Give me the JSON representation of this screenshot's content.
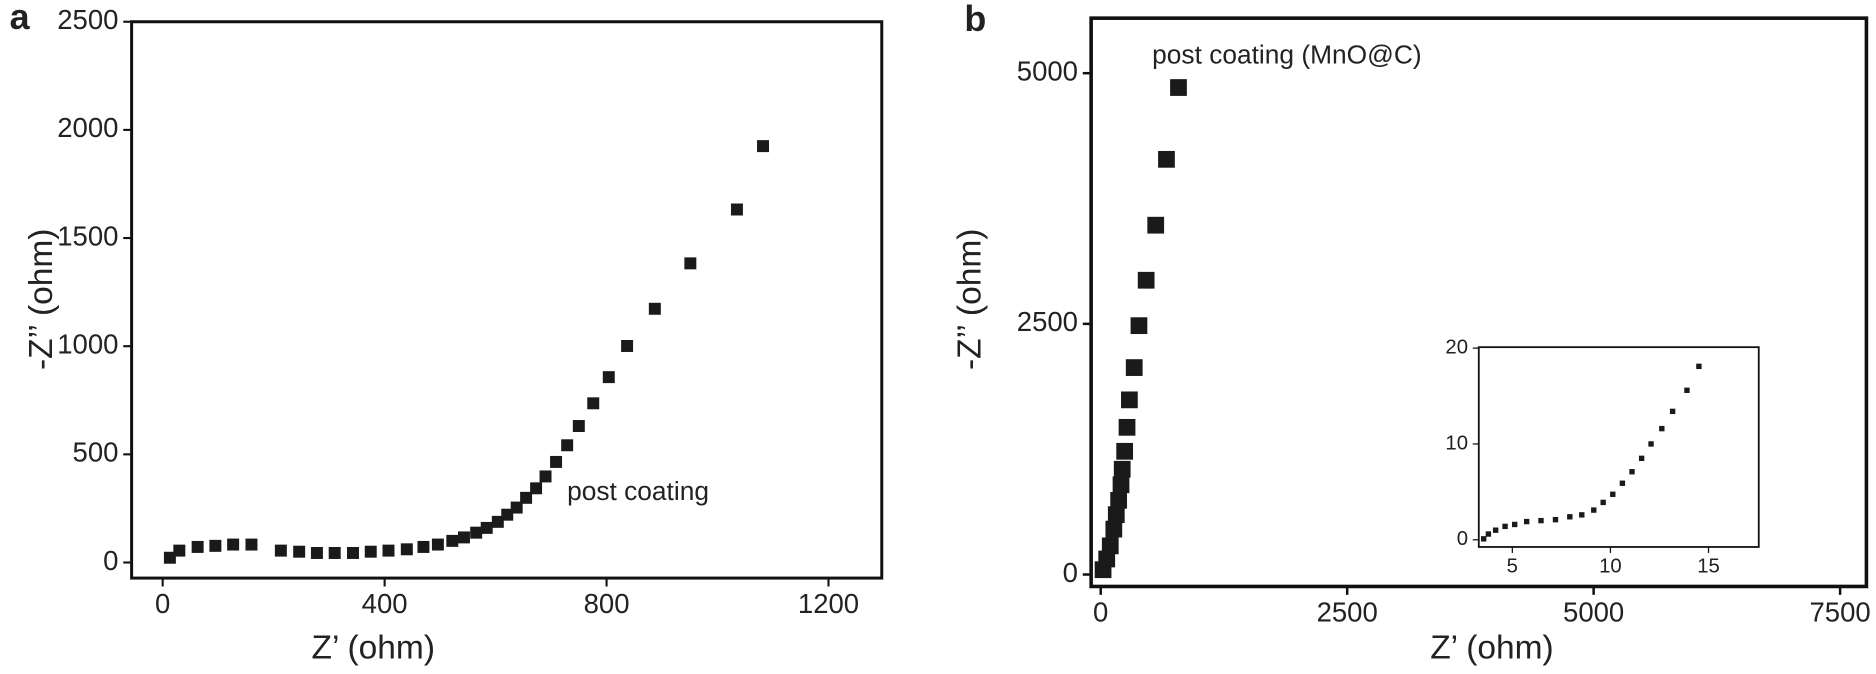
{
  "chart_data": [
    {
      "type": "scatter",
      "panel_label": "a",
      "x_label": "Z’ (ohm)",
      "y_label": "-Z’’ (ohm)",
      "annotation": "post coating",
      "color": "#1a1a1a",
      "xlim": [
        -56,
        1296
      ],
      "ylim": [
        -72,
        2500
      ],
      "xticks": [
        0,
        400,
        800,
        1200
      ],
      "yticks": [
        0,
        500,
        1000,
        1500,
        2000,
        2500
      ],
      "x": [
        13,
        30,
        63,
        95,
        127,
        160,
        213,
        246,
        278,
        310,
        343,
        375,
        407,
        440,
        470,
        496,
        522,
        543,
        565,
        584,
        604,
        621,
        638,
        655,
        673,
        690,
        709,
        729,
        750,
        776,
        804,
        837,
        887,
        951,
        1035,
        1082
      ],
      "values": [
        22,
        55,
        72,
        77,
        83,
        83,
        55,
        50,
        44,
        44,
        44,
        50,
        55,
        61,
        72,
        83,
        100,
        116,
        138,
        160,
        188,
        221,
        254,
        299,
        343,
        398,
        465,
        542,
        631,
        736,
        857,
        1001,
        1173,
        1383,
        1632,
        1925
      ]
    },
    {
      "type": "scatter",
      "panel_label": "b",
      "x_label": "Z’ (ohm)",
      "y_label": "-Z’’ (ohm)",
      "annotation": "post coating (MnO@C)",
      "color": "#1a1a1a",
      "xlim": [
        -97,
        7767
      ],
      "ylim": [
        -119,
        5549
      ],
      "xticks": [
        0,
        2500,
        5000,
        7500
      ],
      "yticks": [
        0,
        2500,
        5000
      ],
      "x": [
        24,
        61,
        97,
        133,
        158,
        182,
        206,
        218,
        243,
        267,
        291,
        340,
        388,
        461,
        558,
        667,
        789
      ],
      "values": [
        48,
        155,
        286,
        453,
        597,
        740,
        895,
        1050,
        1229,
        1468,
        1742,
        2064,
        2482,
        2935,
        3484,
        4141,
        4857
      ]
    },
    {
      "type": "scatter",
      "color": "#1a1a1a",
      "xlim": [
        3.29,
        17.56
      ],
      "ylim": [
        -0.75,
        20.1
      ],
      "xticks": [
        5,
        10,
        15
      ],
      "yticks": [
        0,
        10,
        20
      ],
      "x": [
        3.54,
        3.78,
        4.15,
        4.63,
        5.12,
        5.73,
        6.46,
        7.2,
        7.93,
        8.54,
        9.15,
        9.63,
        10.12,
        10.61,
        11.1,
        11.59,
        12.07,
        12.62,
        13.17,
        13.9,
        14.51
      ],
      "values": [
        0.1,
        0.6,
        1.0,
        1.4,
        1.6,
        1.9,
        2.0,
        2.1,
        2.4,
        2.6,
        3.1,
        3.9,
        4.75,
        5.9,
        7.1,
        8.5,
        10.0,
        11.6,
        13.4,
        15.6,
        18.1
      ]
    }
  ]
}
